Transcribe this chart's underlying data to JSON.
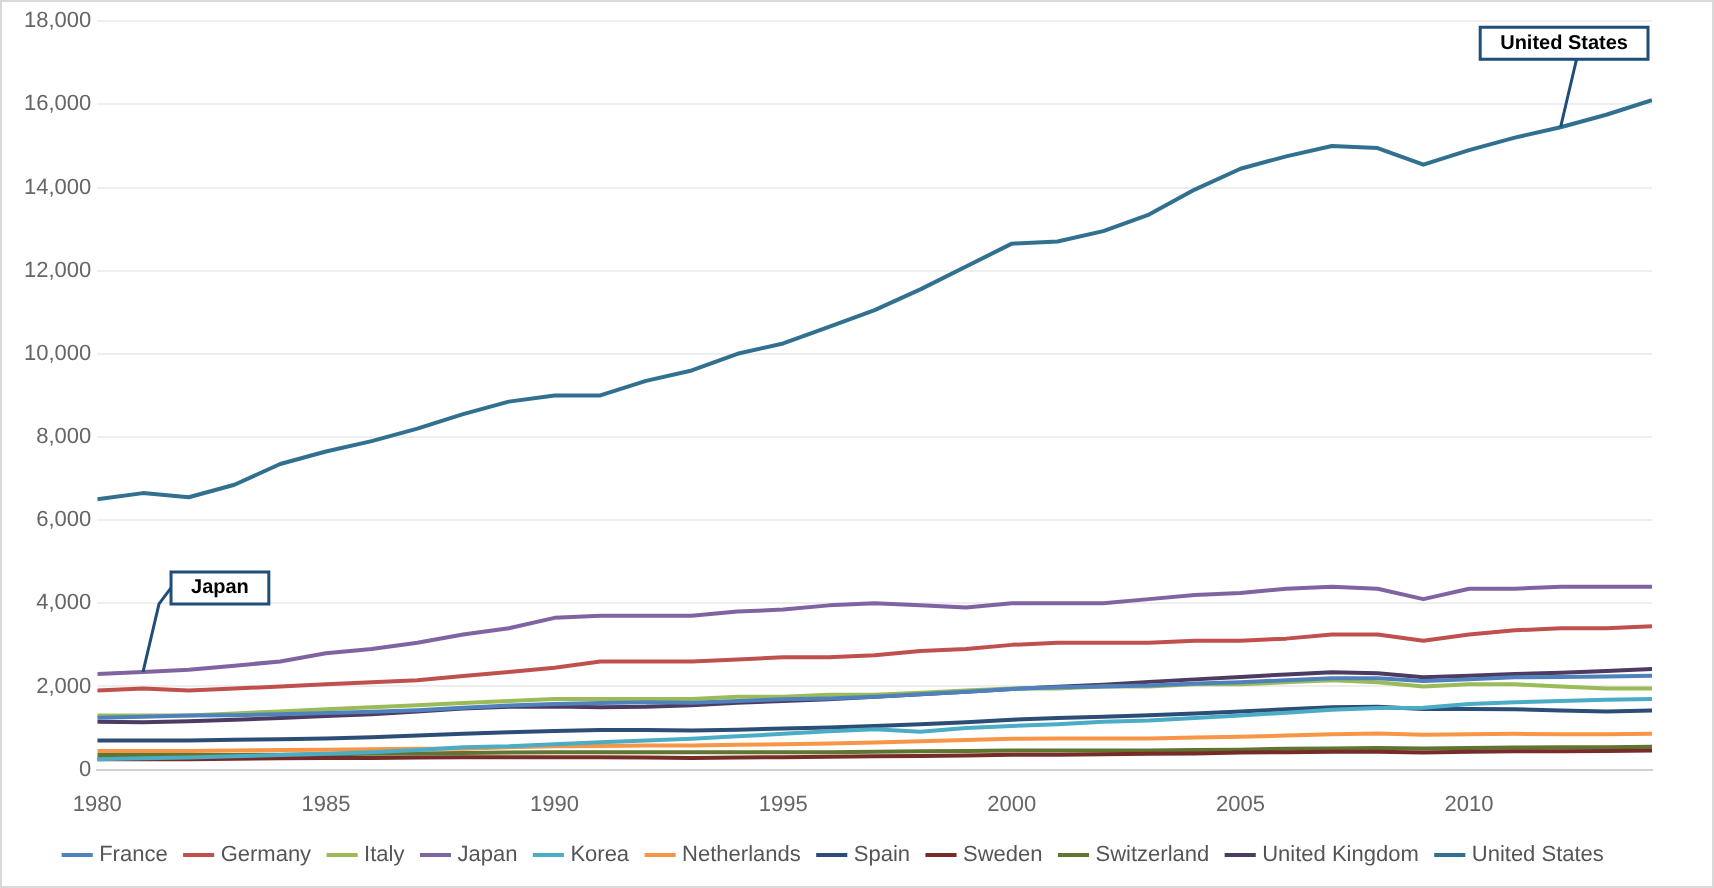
{
  "chart_data": {
    "type": "line",
    "x": [
      1980,
      1981,
      1982,
      1983,
      1984,
      1985,
      1986,
      1987,
      1988,
      1989,
      1990,
      1991,
      1992,
      1993,
      1994,
      1995,
      1996,
      1997,
      1998,
      1999,
      2000,
      2001,
      2002,
      2003,
      2004,
      2005,
      2006,
      2007,
      2008,
      2009,
      2010,
      2011,
      2012,
      2013,
      2014
    ],
    "xlim": [
      1980,
      2014
    ],
    "xticks": [
      1980,
      1985,
      1990,
      1995,
      2000,
      2005,
      2010
    ],
    "ylim": [
      0,
      18000
    ],
    "yticks": [
      0,
      {
        "value": 2000,
        "label": "2,000"
      },
      {
        "value": 4000,
        "label": "4,000"
      },
      {
        "value": 6000,
        "label": "6,000"
      },
      {
        "value": 8000,
        "label": "8,000"
      },
      {
        "value": 10000,
        "label": "10,000"
      },
      {
        "value": 12000,
        "label": "12,000"
      },
      {
        "value": 14000,
        "label": "14,000"
      },
      {
        "value": 16000,
        "label": "16,000"
      },
      {
        "value": 18000,
        "label": "18,000"
      }
    ],
    "grid": "y",
    "legend": "bottom",
    "marker": "none",
    "line_style": "solid",
    "annotations": [
      {
        "text": "Japan",
        "x": 1981,
        "y": 2350
      },
      {
        "text": "United States",
        "x": 2012,
        "y": 15450
      }
    ],
    "series": [
      {
        "name": "France",
        "color": "#4f81bd",
        "values": [
          1250,
          1270,
          1300,
          1310,
          1330,
          1360,
          1390,
          1430,
          1490,
          1540,
          1580,
          1600,
          1620,
          1610,
          1650,
          1690,
          1710,
          1750,
          1810,
          1870,
          1940,
          1980,
          2000,
          2020,
          2070,
          2100,
          2150,
          2200,
          2200,
          2130,
          2170,
          2220,
          2230,
          2240,
          2260
        ]
      },
      {
        "name": "Germany",
        "color": "#c0504d",
        "values": [
          1900,
          1950,
          1900,
          1950,
          2000,
          2050,
          2100,
          2150,
          2250,
          2350,
          2450,
          2600,
          2600,
          2600,
          2650,
          2700,
          2700,
          2750,
          2850,
          2900,
          3000,
          3050,
          3050,
          3050,
          3100,
          3100,
          3150,
          3250,
          3250,
          3100,
          3250,
          3350,
          3400,
          3400,
          3450
        ]
      },
      {
        "name": "Italy",
        "color": "#9bbb59",
        "values": [
          1300,
          1300,
          1300,
          1350,
          1400,
          1450,
          1500,
          1550,
          1600,
          1650,
          1700,
          1700,
          1700,
          1700,
          1750,
          1750,
          1800,
          1800,
          1850,
          1900,
          1950,
          1950,
          2000,
          2000,
          2050,
          2050,
          2100,
          2150,
          2100,
          2000,
          2050,
          2050,
          2000,
          1950,
          1950
        ]
      },
      {
        "name": "Japan",
        "color": "#8064a2",
        "values": [
          2300,
          2350,
          2400,
          2500,
          2600,
          2800,
          2900,
          3050,
          3250,
          3400,
          3650,
          3700,
          3700,
          3700,
          3800,
          3850,
          3950,
          4000,
          3950,
          3900,
          4000,
          4000,
          4000,
          4100,
          4200,
          4250,
          4350,
          4400,
          4350,
          4100,
          4350,
          4350,
          4400,
          4400,
          4400
        ]
      },
      {
        "name": "Korea",
        "color": "#4bacc6",
        "values": [
          250,
          270,
          290,
          320,
          350,
          380,
          420,
          470,
          540,
          560,
          610,
          660,
          700,
          740,
          800,
          860,
          920,
          970,
          910,
          1000,
          1050,
          1090,
          1150,
          1180,
          1240,
          1300,
          1370,
          1440,
          1480,
          1490,
          1580,
          1620,
          1650,
          1680,
          1700
        ]
      },
      {
        "name": "Netherlands",
        "color": "#f79646",
        "values": [
          450,
          450,
          450,
          460,
          470,
          480,
          490,
          500,
          500,
          540,
          560,
          570,
          580,
          580,
          600,
          610,
          630,
          650,
          680,
          710,
          740,
          750,
          750,
          750,
          770,
          790,
          820,
          850,
          870,
          840,
          850,
          860,
          850,
          850,
          860
        ]
      },
      {
        "name": "Spain",
        "color": "#2c4d75",
        "values": [
          700,
          700,
          700,
          720,
          730,
          750,
          780,
          820,
          860,
          900,
          930,
          950,
          950,
          940,
          960,
          990,
          1010,
          1050,
          1090,
          1140,
          1200,
          1240,
          1270,
          1310,
          1350,
          1400,
          1450,
          1500,
          1510,
          1460,
          1460,
          1450,
          1420,
          1400,
          1420
        ]
      },
      {
        "name": "Sweden",
        "color": "#772c2a",
        "values": [
          250,
          250,
          250,
          260,
          270,
          280,
          280,
          290,
          300,
          300,
          300,
          300,
          290,
          280,
          290,
          300,
          310,
          320,
          330,
          340,
          360,
          360,
          370,
          380,
          390,
          410,
          420,
          430,
          430,
          410,
          430,
          440,
          440,
          450,
          460
        ]
      },
      {
        "name": "Switzerland",
        "color": "#5f7530",
        "values": [
          350,
          350,
          350,
          350,
          360,
          370,
          380,
          390,
          400,
          410,
          420,
          420,
          420,
          420,
          420,
          420,
          420,
          430,
          440,
          450,
          460,
          460,
          460,
          460,
          470,
          480,
          500,
          510,
          520,
          510,
          520,
          530,
          540,
          540,
          550
        ]
      },
      {
        "name": "United Kingdom",
        "color": "#4d3b62",
        "values": [
          1150,
          1140,
          1160,
          1200,
          1240,
          1290,
          1330,
          1400,
          1470,
          1510,
          1520,
          1500,
          1510,
          1550,
          1610,
          1650,
          1690,
          1750,
          1810,
          1870,
          1940,
          1990,
          2040,
          2110,
          2170,
          2230,
          2290,
          2340,
          2320,
          2220,
          2260,
          2300,
          2330,
          2370,
          2420
        ]
      },
      {
        "name": "United States",
        "color": "#31708f",
        "values": [
          6500,
          6650,
          6550,
          6850,
          7350,
          7650,
          7900,
          8200,
          8550,
          8850,
          9000,
          9000,
          9350,
          9600,
          10000,
          10250,
          10650,
          11050,
          11550,
          12100,
          12650,
          12700,
          12950,
          13350,
          13950,
          14450,
          14750,
          15000,
          14950,
          14550,
          14900,
          15200,
          15450,
          15750,
          16100
        ]
      }
    ]
  }
}
